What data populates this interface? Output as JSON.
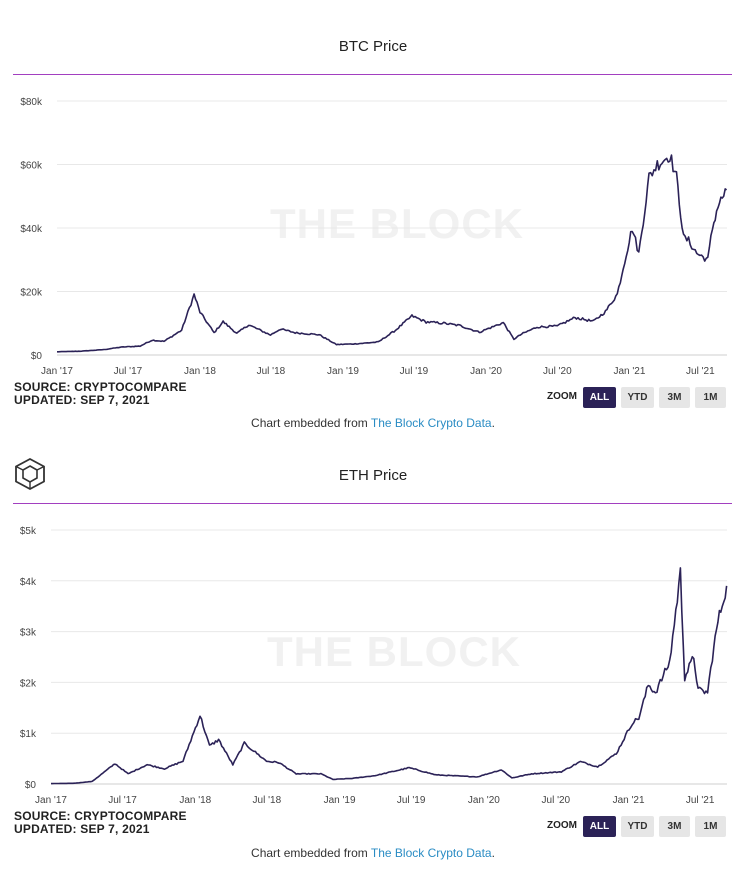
{
  "brand_logo": "cube-logo-icon",
  "colors": {
    "line": "#2b2257",
    "rule": "#a23fc0",
    "grid": "#e8e8e8",
    "button_active": "#2b2257",
    "button": "#e6e6e6",
    "link": "#2a8cc4"
  },
  "charts": [
    {
      "watermark": "THE BLOCK",
      "source_line": "SOURCE: CRYPTOCOMPARE",
      "updated_line": "UPDATED: SEP 7, 2021",
      "zoom_label": "ZOOM",
      "zoom_buttons": [
        "ALL",
        "YTD",
        "3M",
        "1M"
      ],
      "active_zoom": "ALL",
      "embed_prefix": "Chart embedded from ",
      "embed_link": "The Block Crypto Data",
      "embed_suffix": "."
    },
    {
      "watermark": "THE BLOCK",
      "source_line": "SOURCE: CRYPTOCOMPARE",
      "updated_line": "UPDATED: SEP 7, 2021",
      "zoom_label": "ZOOM",
      "zoom_buttons": [
        "ALL",
        "YTD",
        "3M",
        "1M"
      ],
      "active_zoom": "ALL",
      "embed_prefix": "Chart embedded from ",
      "embed_link": "The Block Crypto Data",
      "embed_suffix": "."
    }
  ],
  "chart_data": [
    {
      "type": "line",
      "title": "BTC Price",
      "xlabel": "",
      "ylabel": "",
      "x_ticks": [
        "Jan '17",
        "Jul '17",
        "Jan '18",
        "Jul '18",
        "Jan '19",
        "Jul '19",
        "Jan '20",
        "Jul '20",
        "Jan '21",
        "Jul '21"
      ],
      "y_ticks": [
        "$0",
        "$20k",
        "$40k",
        "$60k",
        "$80k"
      ],
      "ylim": [
        0,
        80000
      ],
      "xlim": [
        "2017-01-01",
        "2021-09-07"
      ],
      "grid": true,
      "series": [
        {
          "x": [
            "2017-01-01",
            "2017-03-01",
            "2017-05-01",
            "2017-06-15",
            "2017-08-01",
            "2017-09-01",
            "2017-10-01",
            "2017-11-15",
            "2017-12-17",
            "2018-01-01",
            "2018-02-06",
            "2018-03-01",
            "2018-04-05",
            "2018-05-05",
            "2018-06-30",
            "2018-07-25",
            "2018-09-01",
            "2018-11-01",
            "2018-12-15",
            "2019-02-01",
            "2019-04-01",
            "2019-05-15",
            "2019-06-26",
            "2019-08-01",
            "2019-09-15",
            "2019-10-25",
            "2019-12-15",
            "2020-02-14",
            "2020-03-12",
            "2020-04-01",
            "2020-05-10",
            "2020-07-01",
            "2020-08-15",
            "2020-10-01",
            "2020-11-01",
            "2020-12-01",
            "2021-01-08",
            "2021-01-25",
            "2021-02-20",
            "2021-03-13",
            "2021-04-14",
            "2021-05-01",
            "2021-05-19",
            "2021-06-01",
            "2021-06-22",
            "2021-07-20",
            "2021-08-01",
            "2021-08-15",
            "2021-09-06"
          ],
          "y": [
            1000,
            1200,
            1700,
            2500,
            2800,
            4700,
            4300,
            7800,
            19000,
            13500,
            7000,
            10500,
            6800,
            9500,
            6300,
            8200,
            7000,
            6400,
            3300,
            3500,
            4100,
            7800,
            12300,
            10400,
            10000,
            9300,
            7200,
            10200,
            5000,
            6600,
            8800,
            9100,
            11800,
            10600,
            13700,
            19200,
            40000,
            32000,
            56000,
            60000,
            63000,
            56000,
            37000,
            36000,
            32000,
            30000,
            40000,
            47000,
            52000
          ]
        }
      ]
    },
    {
      "type": "line",
      "title": "ETH Price",
      "xlabel": "",
      "ylabel": "",
      "x_ticks": [
        "Jan '17",
        "Jul '17",
        "Jan '18",
        "Jul '18",
        "Jan '19",
        "Jul '19",
        "Jan '20",
        "Jul '20",
        "Jan '21",
        "Jul '21"
      ],
      "y_ticks": [
        "$0",
        "$1k",
        "$2k",
        "$3k",
        "$4k",
        "$5k"
      ],
      "ylim": [
        0,
        5000
      ],
      "xlim": [
        "2017-01-01",
        "2021-09-07"
      ],
      "grid": true,
      "series": [
        {
          "x": [
            "2017-01-01",
            "2017-03-01",
            "2017-04-15",
            "2017-06-12",
            "2017-07-15",
            "2017-09-01",
            "2017-10-15",
            "2017-12-01",
            "2018-01-13",
            "2018-02-06",
            "2018-03-01",
            "2018-04-06",
            "2018-05-05",
            "2018-06-30",
            "2018-08-01",
            "2018-09-13",
            "2018-11-15",
            "2018-12-15",
            "2019-02-01",
            "2019-04-01",
            "2019-06-26",
            "2019-09-01",
            "2019-12-15",
            "2020-02-14",
            "2020-03-12",
            "2020-05-01",
            "2020-07-15",
            "2020-09-01",
            "2020-10-15",
            "2020-12-01",
            "2021-01-10",
            "2021-01-27",
            "2021-02-20",
            "2021-03-10",
            "2021-04-15",
            "2021-05-12",
            "2021-05-23",
            "2021-06-15",
            "2021-06-26",
            "2021-07-20",
            "2021-08-01",
            "2021-08-15",
            "2021-09-06"
          ],
          "y": [
            8,
            15,
            50,
            400,
            200,
            380,
            300,
            450,
            1350,
            750,
            870,
            380,
            800,
            450,
            420,
            200,
            200,
            90,
            110,
            165,
            320,
            180,
            140,
            280,
            120,
            200,
            240,
            440,
            340,
            600,
            1200,
            1300,
            1950,
            1800,
            2400,
            4150,
            2100,
            2500,
            1850,
            1800,
            2500,
            3200,
            3900
          ]
        }
      ]
    }
  ]
}
